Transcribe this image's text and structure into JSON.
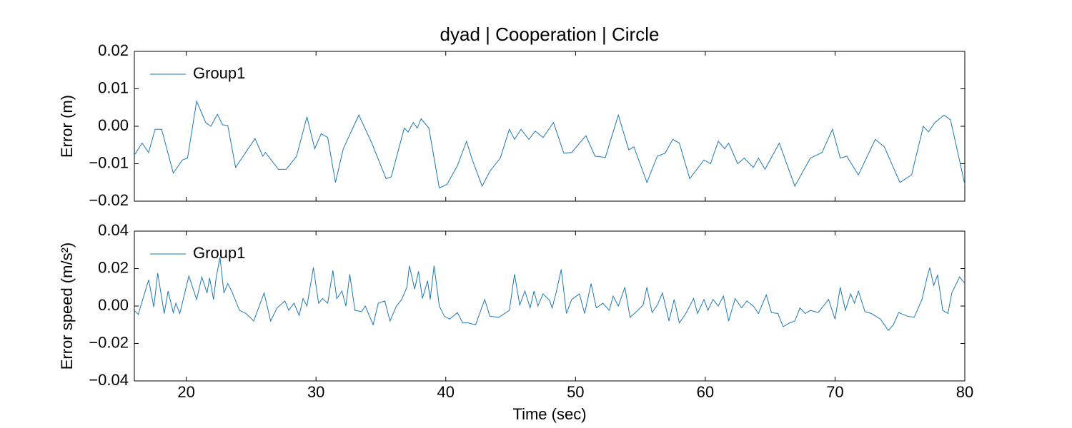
{
  "chart_data": [
    {
      "type": "line",
      "title": "dyad | Cooperation | Circle",
      "ylabel": "Error (m)",
      "x": [
        16,
        16.6,
        17.1,
        17.6,
        18.1,
        19.0,
        19.7,
        20.1,
        20.8,
        21.5,
        21.9,
        22.4,
        22.8,
        23.2,
        23.8,
        25.3,
        25.9,
        26.1,
        27.1,
        27.7,
        28.5,
        29.3,
        29.9,
        30.4,
        30.9,
        31.5,
        32.1,
        33.3,
        34.3,
        35.4,
        35.8,
        36.8,
        37.1,
        37.5,
        37.8,
        38.1,
        38.7,
        39.5,
        40.1,
        40.9,
        41.6,
        42.0,
        42.8,
        43.4,
        44.2,
        44.9,
        45.3,
        45.8,
        46.4,
        46.9,
        47.5,
        48.3,
        49.1,
        49.7,
        50.8,
        51.5,
        52.3,
        53.3,
        54.1,
        54.5,
        55.5,
        56.3,
        56.9,
        57.5,
        58.0,
        58.8,
        59.9,
        60.4,
        61.0,
        61.5,
        61.8,
        62.5,
        63.0,
        63.7,
        64.1,
        64.6,
        65.7,
        66.9,
        68.1,
        69.0,
        69.8,
        70.4,
        70.9,
        71.8,
        73.1,
        73.8,
        75.0,
        75.9,
        76.8,
        77.2,
        77.7,
        78.4,
        78.9,
        80
      ],
      "series": [
        {
          "name": "Group1",
          "color": "#1f77b4",
          "values": [
            -0.0077,
            -0.0045,
            -0.007,
            -0.0008,
            -0.0008,
            -0.0125,
            -0.009,
            -0.0085,
            0.0067,
            0.001,
            0.0,
            0.0032,
            0.0004,
            0.0002,
            -0.011,
            -0.0033,
            -0.008,
            -0.007,
            -0.0115,
            -0.0115,
            -0.008,
            0.0025,
            -0.006,
            -0.002,
            -0.003,
            -0.015,
            -0.006,
            0.003,
            -0.0045,
            -0.014,
            -0.0135,
            -0.0005,
            -0.0015,
            0.001,
            -0.0005,
            0.002,
            -0.0005,
            -0.0165,
            -0.0155,
            -0.0105,
            -0.004,
            -0.0085,
            -0.016,
            -0.012,
            -0.0085,
            -0.0008,
            -0.0035,
            -0.0008,
            -0.0035,
            -0.0013,
            -0.003,
            0.001,
            -0.0072,
            -0.007,
            -0.0025,
            -0.008,
            -0.0083,
            0.003,
            -0.0063,
            -0.0055,
            -0.015,
            -0.008,
            -0.0072,
            -0.0035,
            -0.0045,
            -0.014,
            -0.009,
            -0.01,
            -0.004,
            -0.006,
            -0.0045,
            -0.01,
            -0.0085,
            -0.011,
            -0.0085,
            -0.0115,
            -0.0045,
            -0.016,
            -0.0085,
            -0.007,
            -0.0008,
            -0.0085,
            -0.008,
            -0.013,
            -0.0035,
            -0.0055,
            -0.015,
            -0.013,
            0.0,
            -0.0015,
            0.001,
            0.003,
            0.0017,
            -0.0155
          ]
        }
      ],
      "xlim": [
        16,
        80
      ],
      "ylim": [
        -0.02,
        0.02
      ],
      "yticks": [
        {
          "value": -0.02,
          "label": "−0.02"
        },
        {
          "value": -0.01,
          "label": "−0.01"
        },
        {
          "value": 0,
          "label": "0.00"
        },
        {
          "value": 0.01,
          "label": "0.01"
        },
        {
          "value": 0.02,
          "label": "0.02"
        }
      ],
      "legend": "upper left"
    },
    {
      "type": "line",
      "xlabel": "Time (sec)",
      "ylabel": "Error speed (m/s²)",
      "x": [
        16,
        16.3,
        17.1,
        17.5,
        17.8,
        18.3,
        18.6,
        19.0,
        19.2,
        19.5,
        20.2,
        20.8,
        21.2,
        21.6,
        21.8,
        22.1,
        22.3,
        22.6,
        22.9,
        23.2,
        23.5,
        24.1,
        24.6,
        25.2,
        26.0,
        26.5,
        27.0,
        27.6,
        27.9,
        28.3,
        28.7,
        29.0,
        29.3,
        29.8,
        30.2,
        30.5,
        30.9,
        31.3,
        31.6,
        32.0,
        32.3,
        32.6,
        33.0,
        33.5,
        33.8,
        34.4,
        34.8,
        35.3,
        35.7,
        36.2,
        36.6,
        37.0,
        37.2,
        37.6,
        37.9,
        38.2,
        38.6,
        38.8,
        39.1,
        39.5,
        39.9,
        40.3,
        40.9,
        41.3,
        41.7,
        42.3,
        43.0,
        43.4,
        44.1,
        44.9,
        45.3,
        45.7,
        46.1,
        46.5,
        46.8,
        47.1,
        47.5,
        48.0,
        48.2,
        48.5,
        48.9,
        49.3,
        49.7,
        50.3,
        50.7,
        51.2,
        51.6,
        52.1,
        52.6,
        52.9,
        53.3,
        53.8,
        54.2,
        54.8,
        55.2,
        55.5,
        55.9,
        56.3,
        56.7,
        57.2,
        57.6,
        58.0,
        58.5,
        59.1,
        59.4,
        59.9,
        60.2,
        60.6,
        61.0,
        61.4,
        61.8,
        62.3,
        62.8,
        63.2,
        63.7,
        64.1,
        64.7,
        65.1,
        65.6,
        66.0,
        66.5,
        66.9,
        67.3,
        67.7,
        68.1,
        68.7,
        69.1,
        69.5,
        70.0,
        70.4,
        70.8,
        71.2,
        71.5,
        71.8,
        72.3,
        72.8,
        73.5,
        74.1,
        74.5,
        74.9,
        75.6,
        76.1,
        76.7,
        77.1,
        77.3,
        77.6,
        77.9,
        78.3,
        78.7,
        79.0,
        79.6,
        80
      ],
      "series": [
        {
          "name": "Group1",
          "color": "#1f77b4",
          "values": [
            -0.0023,
            -0.0045,
            0.014,
            -0.0005,
            0.0175,
            -0.004,
            0.008,
            -0.0035,
            0.0015,
            -0.004,
            0.016,
            0.0035,
            0.0155,
            0.007,
            0.015,
            0.0035,
            0.015,
            0.026,
            0.007,
            0.012,
            0.008,
            -0.0023,
            -0.004,
            -0.008,
            0.007,
            -0.008,
            -0.001,
            0.0027,
            -0.0023,
            0.0015,
            -0.005,
            0.004,
            0.0,
            0.0205,
            0.0015,
            0.004,
            0.0015,
            0.019,
            0.004,
            0.008,
            0.0,
            0.017,
            -0.0023,
            -0.003,
            0.0,
            -0.01,
            0.0015,
            0.0027,
            -0.008,
            0.0,
            0.0035,
            0.01,
            0.0215,
            0.009,
            0.0185,
            0.004,
            0.0135,
            0.0035,
            0.0215,
            0.0,
            -0.0055,
            -0.007,
            -0.0035,
            -0.009,
            -0.009,
            -0.01,
            0.0035,
            -0.0055,
            -0.006,
            -0.0023,
            0.017,
            0.0005,
            0.008,
            -0.001,
            0.008,
            0.0,
            0.0065,
            0.003,
            -0.001,
            0.007,
            0.0195,
            -0.004,
            0.0035,
            0.0065,
            -0.004,
            0.012,
            -0.001,
            0.0015,
            -0.0023,
            0.0053,
            0.0,
            0.01,
            -0.006,
            -0.0023,
            0.0005,
            0.01,
            -0.0035,
            0.0005,
            0.007,
            -0.008,
            0.0035,
            -0.009,
            -0.004,
            0.004,
            -0.004,
            0.0035,
            -0.0023,
            0.0035,
            0.0,
            0.0053,
            -0.008,
            0.004,
            -0.001,
            0.0027,
            0.0,
            -0.004,
            0.006,
            -0.0035,
            -0.004,
            -0.011,
            -0.009,
            -0.008,
            -0.001,
            -0.004,
            -0.0023,
            -0.0035,
            0.0,
            0.0035,
            -0.007,
            0.01,
            -0.0023,
            0.0065,
            0.0015,
            0.008,
            -0.003,
            -0.004,
            -0.007,
            -0.013,
            -0.01,
            -0.0035,
            -0.0055,
            -0.006,
            0.0035,
            0.0155,
            0.0205,
            0.011,
            0.0165,
            -0.0023,
            -0.004,
            0.007,
            0.0155,
            0.012
          ]
        }
      ],
      "xlim": [
        16,
        80
      ],
      "ylim": [
        -0.04,
        0.04
      ],
      "xticks": [
        20,
        30,
        40,
        50,
        60,
        70,
        80
      ],
      "yticks": [
        {
          "value": -0.04,
          "label": "−0.04"
        },
        {
          "value": -0.02,
          "label": "−0.02"
        },
        {
          "value": 0,
          "label": "0.00"
        },
        {
          "value": 0.02,
          "label": "0.02"
        },
        {
          "value": 0.04,
          "label": "0.04"
        }
      ],
      "legend": "upper left"
    }
  ]
}
